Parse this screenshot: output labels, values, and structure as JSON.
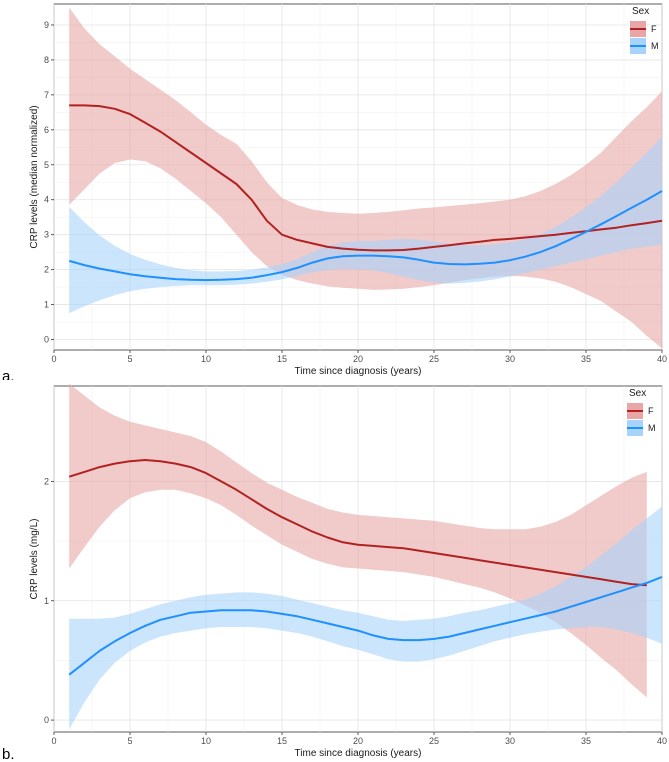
{
  "panels": [
    {
      "letter": "a."
    },
    {
      "letter": "b."
    }
  ],
  "chart_data": [
    {
      "type": "line",
      "title": "",
      "xlabel": "Time since diagnosis (years)",
      "ylabel": "CRP levels (median normalized)",
      "xlim": [
        0,
        40
      ],
      "ylim": [
        -0.3,
        9.6
      ],
      "xticks": [
        0,
        5,
        10,
        15,
        20,
        25,
        30,
        35,
        40
      ],
      "xtick_labels": [
        "0",
        "5",
        "10",
        "15",
        "20",
        "25",
        "30",
        "35",
        "40"
      ],
      "yticks": [
        0,
        1,
        2,
        3,
        4,
        5,
        6,
        7,
        8,
        9
      ],
      "ytick_labels": [
        "0",
        "1",
        "2",
        "3",
        "4",
        "5",
        "6",
        "7",
        "8",
        "9"
      ],
      "grid": true,
      "legend": {
        "title": "Sex",
        "position": "top-right",
        "entries": [
          "F",
          "M"
        ]
      },
      "series": [
        {
          "name": "F",
          "color": "#b22222",
          "fill": "#e8a6a6",
          "x": [
            1,
            2,
            3,
            4,
            5,
            6,
            7,
            8,
            9,
            10,
            11,
            12,
            13,
            14,
            15,
            16,
            17,
            18,
            19,
            20,
            21,
            22,
            23,
            24,
            25,
            26,
            27,
            28,
            29,
            30,
            31,
            32,
            33,
            34,
            35,
            36,
            37,
            38,
            39,
            40
          ],
          "y": [
            6.7,
            6.7,
            6.68,
            6.6,
            6.45,
            6.2,
            5.95,
            5.65,
            5.35,
            5.05,
            4.75,
            4.45,
            4.0,
            3.4,
            3.0,
            2.85,
            2.75,
            2.65,
            2.6,
            2.57,
            2.55,
            2.55,
            2.56,
            2.6,
            2.65,
            2.7,
            2.75,
            2.8,
            2.85,
            2.88,
            2.92,
            2.96,
            3.0,
            3.05,
            3.1,
            3.15,
            3.2,
            3.27,
            3.33,
            3.4
          ],
          "lower": [
            3.85,
            4.3,
            4.75,
            5.05,
            5.15,
            5.1,
            4.9,
            4.6,
            4.25,
            3.9,
            3.5,
            3.0,
            2.5,
            2.1,
            1.85,
            1.7,
            1.6,
            1.52,
            1.48,
            1.45,
            1.42,
            1.43,
            1.45,
            1.5,
            1.55,
            1.62,
            1.7,
            1.75,
            1.8,
            1.82,
            1.8,
            1.75,
            1.65,
            1.5,
            1.3,
            1.1,
            0.8,
            0.5,
            0.1,
            -0.25
          ],
          "upper": [
            9.5,
            8.9,
            8.45,
            8.1,
            7.75,
            7.45,
            7.15,
            6.85,
            6.5,
            6.15,
            5.85,
            5.6,
            5.1,
            4.5,
            4.05,
            3.85,
            3.72,
            3.65,
            3.62,
            3.6,
            3.62,
            3.65,
            3.7,
            3.75,
            3.78,
            3.82,
            3.86,
            3.9,
            3.95,
            4.0,
            4.1,
            4.25,
            4.45,
            4.7,
            5.0,
            5.35,
            5.8,
            6.25,
            6.65,
            7.1
          ]
        },
        {
          "name": "M",
          "color": "#1e90ff",
          "fill": "#a8d4fb",
          "x": [
            1,
            2,
            3,
            4,
            5,
            6,
            7,
            8,
            9,
            10,
            11,
            12,
            13,
            14,
            15,
            16,
            17,
            18,
            19,
            20,
            21,
            22,
            23,
            24,
            25,
            26,
            27,
            28,
            29,
            30,
            31,
            32,
            33,
            34,
            35,
            36,
            37,
            38,
            39,
            40
          ],
          "y": [
            2.25,
            2.13,
            2.03,
            1.95,
            1.87,
            1.81,
            1.77,
            1.73,
            1.71,
            1.7,
            1.71,
            1.73,
            1.77,
            1.84,
            1.93,
            2.05,
            2.2,
            2.32,
            2.38,
            2.4,
            2.4,
            2.38,
            2.35,
            2.28,
            2.2,
            2.16,
            2.15,
            2.17,
            2.2,
            2.27,
            2.37,
            2.5,
            2.67,
            2.87,
            3.08,
            3.3,
            3.53,
            3.77,
            4.0,
            4.25
          ],
          "lower": [
            0.75,
            0.95,
            1.12,
            1.27,
            1.38,
            1.45,
            1.5,
            1.53,
            1.55,
            1.55,
            1.55,
            1.57,
            1.6,
            1.65,
            1.72,
            1.82,
            1.92,
            1.98,
            2.02,
            2.0,
            1.98,
            1.9,
            1.8,
            1.7,
            1.63,
            1.6,
            1.62,
            1.66,
            1.72,
            1.8,
            1.9,
            2.0,
            2.1,
            2.2,
            2.3,
            2.4,
            2.5,
            2.6,
            2.65,
            2.72
          ],
          "upper": [
            3.8,
            3.35,
            2.98,
            2.68,
            2.45,
            2.28,
            2.15,
            2.05,
            1.98,
            1.95,
            1.95,
            1.96,
            2.0,
            2.06,
            2.16,
            2.3,
            2.5,
            2.68,
            2.78,
            2.82,
            2.82,
            2.85,
            2.88,
            2.86,
            2.8,
            2.74,
            2.7,
            2.7,
            2.72,
            2.78,
            2.87,
            3.02,
            3.22,
            3.48,
            3.78,
            4.12,
            4.5,
            4.92,
            5.35,
            5.8
          ]
        }
      ]
    },
    {
      "type": "line",
      "title": "",
      "xlabel": "Time since diagnosis (years)",
      "ylabel": "CRP levels (mg/L)",
      "xlim": [
        0,
        40
      ],
      "ylim": [
        -0.1,
        2.8
      ],
      "xticks": [
        0,
        5,
        10,
        15,
        20,
        25,
        30,
        35,
        40
      ],
      "xtick_labels": [
        "0",
        "5",
        "10",
        "15",
        "20",
        "25",
        "30",
        "35",
        "40"
      ],
      "yticks": [
        0,
        1,
        2
      ],
      "ytick_labels": [
        "0",
        "1",
        "2"
      ],
      "grid": true,
      "legend": {
        "title": "Sex",
        "position": "top-right",
        "entries": [
          "F",
          "M"
        ]
      },
      "series": [
        {
          "name": "F",
          "color": "#b22222",
          "fill": "#e8a6a6",
          "x": [
            1,
            2,
            3,
            4,
            5,
            6,
            7,
            8,
            9,
            10,
            11,
            12,
            13,
            14,
            15,
            16,
            17,
            18,
            19,
            20,
            21,
            22,
            23,
            24,
            25,
            26,
            27,
            28,
            29,
            30,
            31,
            32,
            33,
            34,
            35,
            36,
            37,
            38,
            39
          ],
          "y": [
            2.04,
            2.08,
            2.12,
            2.15,
            2.17,
            2.18,
            2.17,
            2.15,
            2.12,
            2.07,
            2.0,
            1.93,
            1.85,
            1.77,
            1.7,
            1.64,
            1.58,
            1.53,
            1.49,
            1.47,
            1.46,
            1.45,
            1.44,
            1.42,
            1.4,
            1.38,
            1.36,
            1.34,
            1.32,
            1.3,
            1.28,
            1.26,
            1.24,
            1.22,
            1.2,
            1.18,
            1.16,
            1.14,
            1.13
          ],
          "lower": [
            1.27,
            1.45,
            1.62,
            1.76,
            1.86,
            1.91,
            1.93,
            1.93,
            1.9,
            1.86,
            1.8,
            1.72,
            1.63,
            1.55,
            1.47,
            1.41,
            1.35,
            1.31,
            1.28,
            1.27,
            1.26,
            1.25,
            1.24,
            1.22,
            1.2,
            1.17,
            1.14,
            1.11,
            1.07,
            1.02,
            0.96,
            0.9,
            0.82,
            0.73,
            0.63,
            0.52,
            0.42,
            0.3,
            0.19
          ],
          "upper": [
            2.82,
            2.72,
            2.62,
            2.55,
            2.5,
            2.47,
            2.44,
            2.41,
            2.38,
            2.33,
            2.25,
            2.16,
            2.07,
            1.99,
            1.93,
            1.87,
            1.82,
            1.77,
            1.74,
            1.72,
            1.71,
            1.7,
            1.69,
            1.68,
            1.67,
            1.65,
            1.63,
            1.61,
            1.6,
            1.6,
            1.6,
            1.62,
            1.66,
            1.72,
            1.8,
            1.88,
            1.96,
            2.03,
            2.08
          ]
        },
        {
          "name": "M",
          "color": "#1e90ff",
          "fill": "#a8d4fb",
          "x": [
            1,
            2,
            3,
            4,
            5,
            6,
            7,
            8,
            9,
            10,
            11,
            12,
            13,
            14,
            15,
            16,
            17,
            18,
            19,
            20,
            21,
            22,
            23,
            24,
            25,
            26,
            27,
            28,
            29,
            30,
            31,
            32,
            33,
            34,
            35,
            36,
            37,
            38,
            39,
            40
          ],
          "y": [
            0.38,
            0.48,
            0.58,
            0.66,
            0.73,
            0.79,
            0.84,
            0.87,
            0.9,
            0.91,
            0.92,
            0.92,
            0.92,
            0.91,
            0.89,
            0.87,
            0.84,
            0.81,
            0.78,
            0.75,
            0.71,
            0.68,
            0.67,
            0.67,
            0.68,
            0.7,
            0.73,
            0.76,
            0.79,
            0.82,
            0.85,
            0.88,
            0.91,
            0.95,
            0.99,
            1.03,
            1.07,
            1.11,
            1.15,
            1.2
          ],
          "lower": [
            -0.08,
            0.15,
            0.34,
            0.48,
            0.58,
            0.65,
            0.7,
            0.73,
            0.75,
            0.77,
            0.78,
            0.78,
            0.78,
            0.77,
            0.75,
            0.73,
            0.7,
            0.66,
            0.62,
            0.59,
            0.55,
            0.51,
            0.49,
            0.49,
            0.51,
            0.54,
            0.58,
            0.62,
            0.66,
            0.69,
            0.72,
            0.74,
            0.76,
            0.77,
            0.78,
            0.78,
            0.76,
            0.73,
            0.69,
            0.64
          ],
          "upper": [
            0.85,
            0.85,
            0.85,
            0.86,
            0.89,
            0.93,
            0.97,
            1.0,
            1.03,
            1.05,
            1.06,
            1.07,
            1.07,
            1.06,
            1.04,
            1.01,
            0.98,
            0.95,
            0.92,
            0.9,
            0.87,
            0.84,
            0.83,
            0.84,
            0.85,
            0.87,
            0.9,
            0.92,
            0.95,
            0.98,
            1.01,
            1.06,
            1.12,
            1.2,
            1.28,
            1.38,
            1.48,
            1.59,
            1.69,
            1.79
          ]
        }
      ]
    }
  ]
}
